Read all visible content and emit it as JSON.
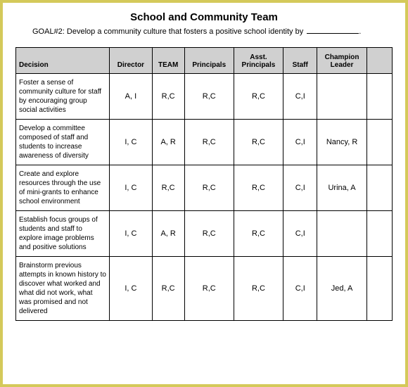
{
  "title": "School and Community Team",
  "goal_prefix": "GOAL#2: Develop a community culture that fosters a positive school identity by",
  "goal_suffix": ".",
  "columns": {
    "c0": "Decision",
    "c1": "Director",
    "c2": "TEAM",
    "c3": "Principals",
    "c4": "Asst. Principals",
    "c5": "Staff",
    "c6": "Champion Leader",
    "c7": ""
  },
  "rows": [
    {
      "decision": "Foster a sense of community culture for staff by encouraging group social activities",
      "director": "A, I",
      "team": "R,C",
      "principals": "R,C",
      "asst": "R,C",
      "staff": "C,I",
      "champion": "",
      "blank": ""
    },
    {
      "decision": "Develop a committee composed of staff and students to increase awareness of diversity",
      "director": "I, C",
      "team": "A, R",
      "principals": "R,C",
      "asst": "R,C",
      "staff": "C,I",
      "champion": "Nancy, R",
      "blank": ""
    },
    {
      "decision": "Create and explore resources through the use of mini-grants to enhance school environment",
      "director": "I, C",
      "team": "R,C",
      "principals": "R,C",
      "asst": "R,C",
      "staff": "C,I",
      "champion": "Urina, A",
      "blank": ""
    },
    {
      "decision": "Establish focus groups of students and staff to explore image problems and positive solutions",
      "director": "I, C",
      "team": "A, R",
      "principals": "R,C",
      "asst": "R,C",
      "staff": "C,I",
      "champion": "",
      "blank": ""
    },
    {
      "decision": "Brainstorm previous attempts in known history to discover what worked and what did not work, what was promised and not delivered",
      "director": "I, C",
      "team": "R,C",
      "principals": "R,C",
      "asst": "R,C",
      "staff": "C,I",
      "champion": "Jed, A",
      "blank": ""
    }
  ],
  "style": {
    "border_color": "#d4c95a",
    "header_bg": "#d0d0d0",
    "text_color": "#000000",
    "bg_color": "#ffffff"
  }
}
